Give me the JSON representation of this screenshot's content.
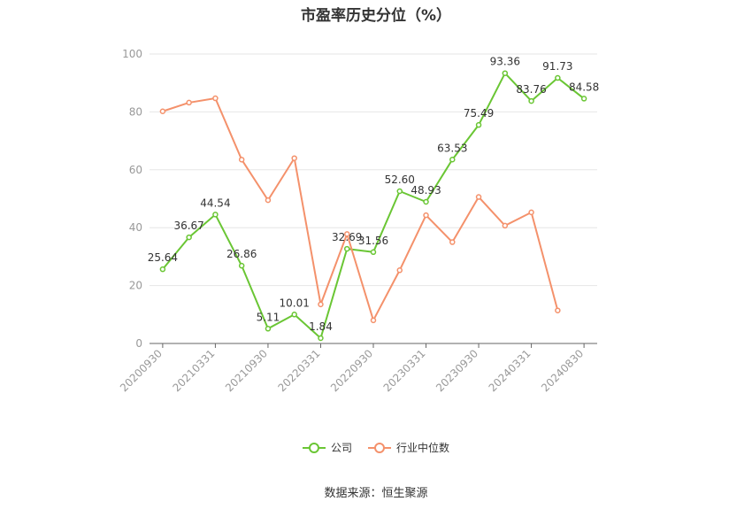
{
  "chart_data": {
    "type": "line",
    "title": "市盈率历史分位（%）",
    "xlabel": "",
    "ylabel": "",
    "ylim": [
      0,
      100
    ],
    "yticks": [
      "0",
      "20",
      "40",
      "60",
      "80",
      "100"
    ],
    "x": [
      "20200930",
      "20201231",
      "20210331",
      "20210630",
      "20210930",
      "20211231",
      "20220331",
      "20220630",
      "20220930",
      "20221231",
      "20230331",
      "20230630",
      "20230930",
      "20231231",
      "20240331",
      "20240630",
      "20240830"
    ],
    "xtick_labels": [
      "20200930",
      "20210331",
      "20210930",
      "20220331",
      "20220930",
      "20230331",
      "20230930",
      "20240331",
      "20240830"
    ],
    "grid": true,
    "legend_position": "bottom",
    "series": [
      {
        "name": "公司",
        "color": "#6ac634",
        "values": [
          25.64,
          36.67,
          44.54,
          26.86,
          5.11,
          10.01,
          1.84,
          32.69,
          31.56,
          52.6,
          48.93,
          63.53,
          75.49,
          93.36,
          83.76,
          91.73,
          84.58
        ],
        "labels": [
          "25.64",
          "36.67",
          "44.54",
          "26.86",
          "5.11",
          "10.01",
          "1.84",
          "32.69",
          "31.56",
          "52.60",
          "48.93",
          "63.53",
          "75.49",
          "93.36",
          "83.76",
          "91.73",
          "84.58"
        ]
      },
      {
        "name": "行业中位数",
        "color": "#f4916b",
        "values": [
          80.2,
          83.2,
          84.7,
          63.5,
          49.5,
          64.0,
          13.5,
          37.8,
          8.0,
          25.3,
          44.3,
          35.0,
          50.6,
          40.7,
          45.3,
          11.4,
          null
        ],
        "labels": []
      }
    ]
  },
  "source": "数据来源：恒生聚源"
}
